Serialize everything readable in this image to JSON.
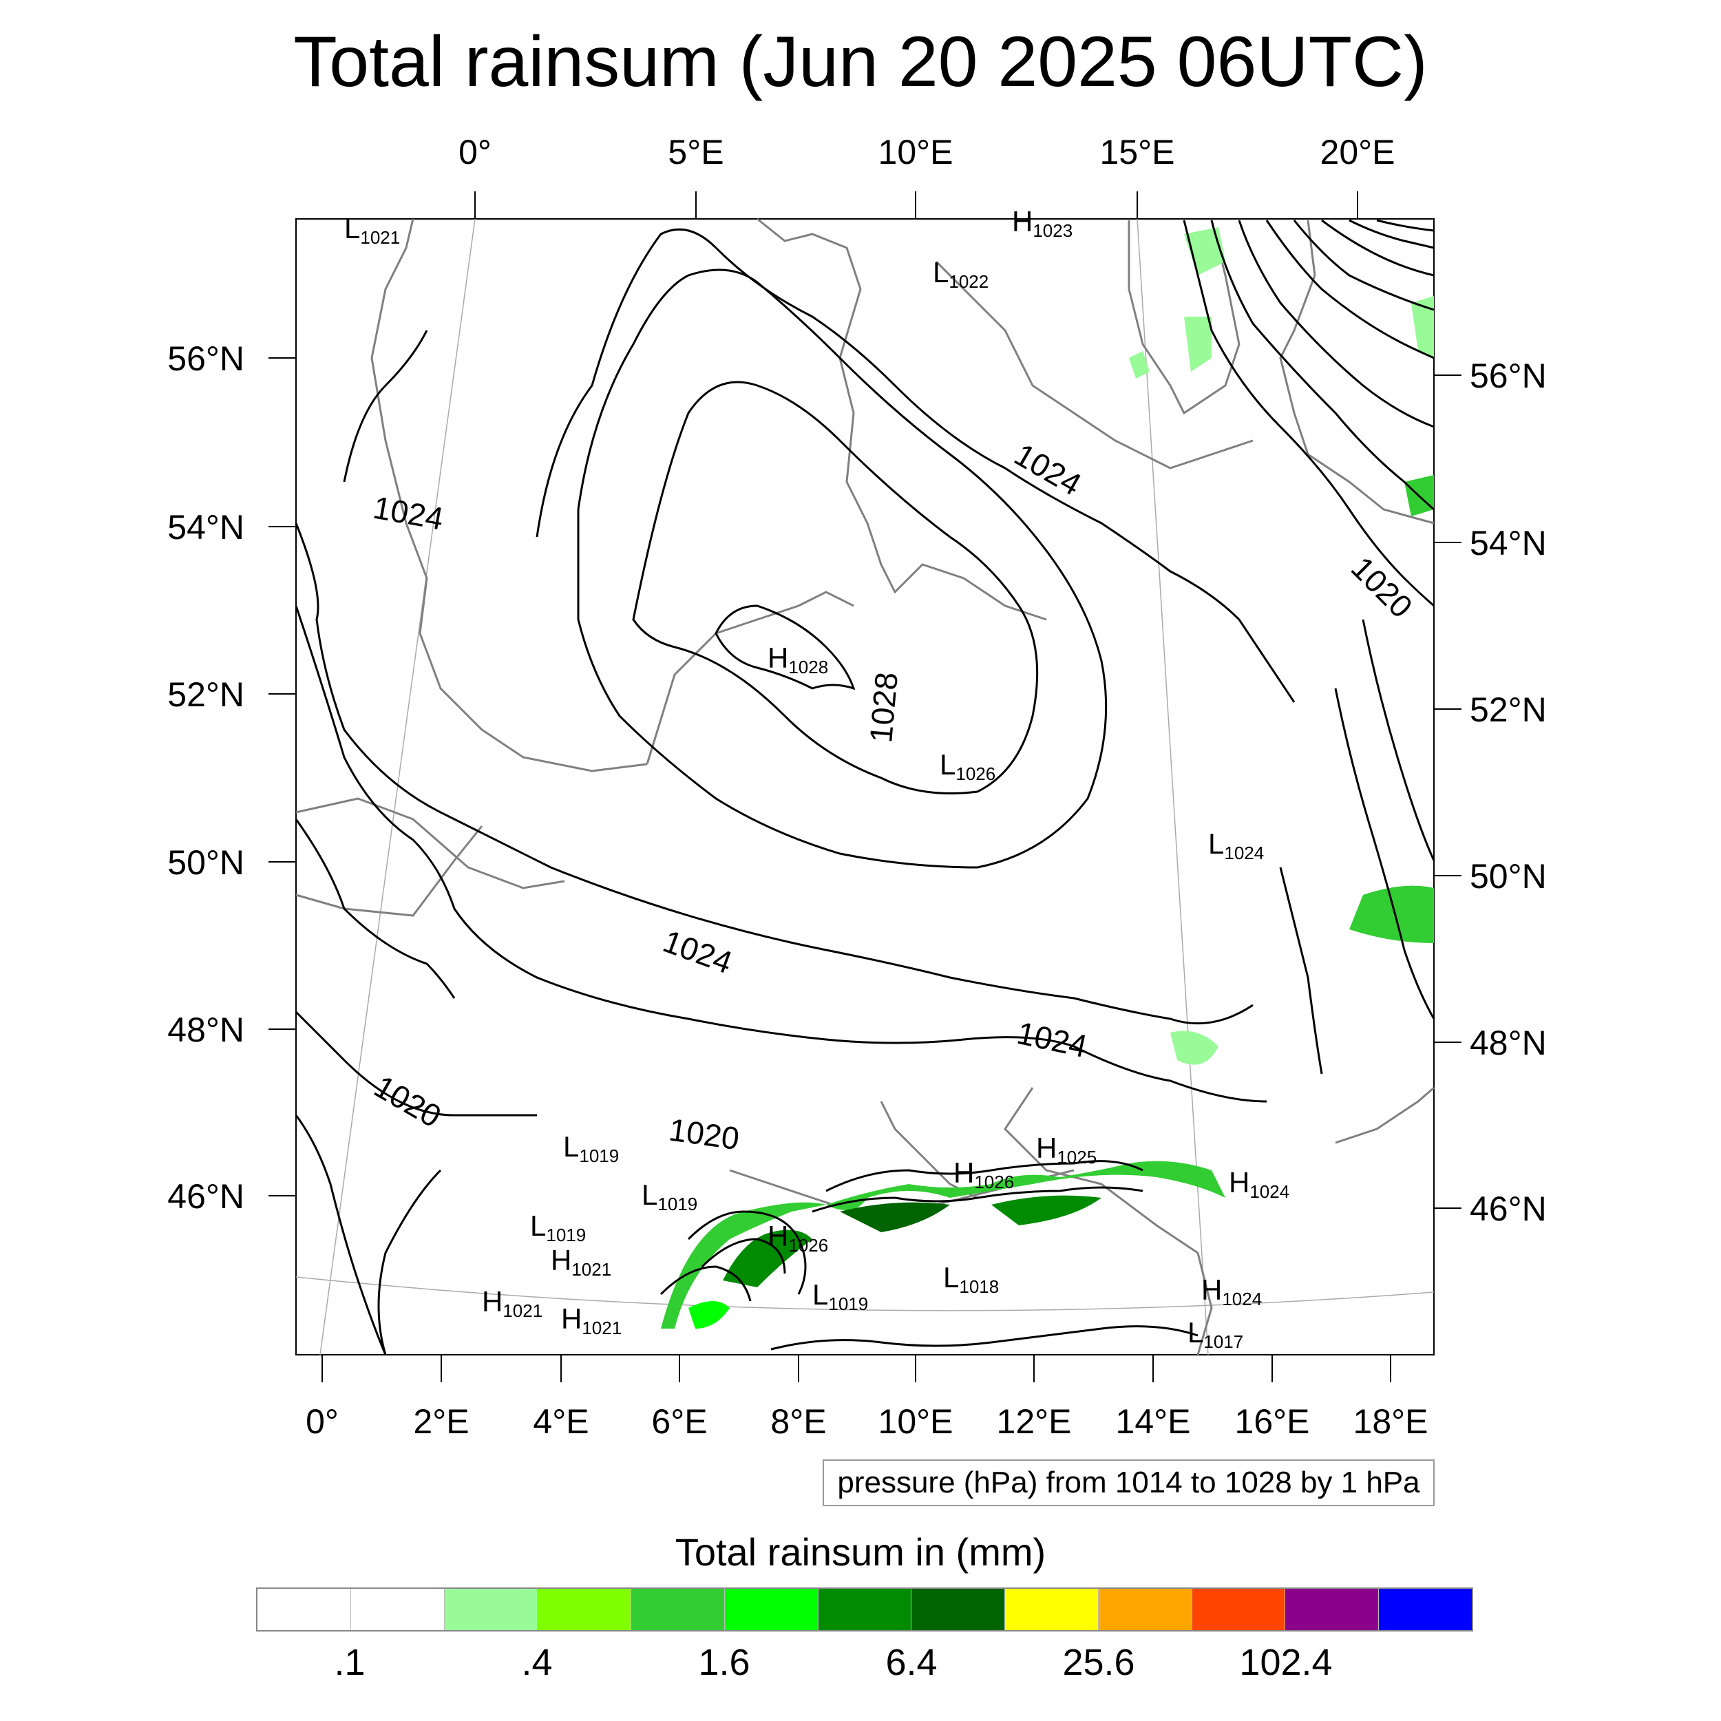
{
  "title": "Total rainsum (Jun 20 2025 06UTC)",
  "map": {
    "top_lon_labels": [
      "0°",
      "5°E",
      "10°E",
      "15°E",
      "20°E"
    ],
    "bottom_lon_labels": [
      "0°",
      "2°E",
      "4°E",
      "6°E",
      "8°E",
      "10°E",
      "12°E",
      "14°E",
      "16°E",
      "18°E"
    ],
    "left_lat_labels": [
      "56°N",
      "54°N",
      "52°N",
      "50°N",
      "48°N",
      "46°N"
    ],
    "right_lat_labels": [
      "56°N",
      "54°N",
      "52°N",
      "50°N",
      "48°N",
      "46°N"
    ],
    "contour_labels": [
      "1024",
      "1024",
      "1024",
      "1024",
      "1028",
      "1020",
      "1020",
      "1020"
    ],
    "pressure_centers": [
      {
        "type": "L",
        "value": "1021"
      },
      {
        "type": "H",
        "value": "1023"
      },
      {
        "type": "L",
        "value": "1022"
      },
      {
        "type": "H",
        "value": "1028"
      },
      {
        "type": "L",
        "value": "1026"
      },
      {
        "type": "L",
        "value": "1024"
      },
      {
        "type": "H",
        "value": "1025"
      },
      {
        "type": "H",
        "value": "1026"
      },
      {
        "type": "H",
        "value": "1024"
      },
      {
        "type": "L",
        "value": "1019"
      },
      {
        "type": "L",
        "value": "1019"
      },
      {
        "type": "L",
        "value": "1019"
      },
      {
        "type": "H",
        "value": "1021"
      },
      {
        "type": "H",
        "value": "1021"
      },
      {
        "type": "H",
        "value": "1021"
      },
      {
        "type": "H",
        "value": "1026"
      },
      {
        "type": "L",
        "value": "1019"
      },
      {
        "type": "L",
        "value": "1018"
      },
      {
        "type": "H",
        "value": "1024"
      },
      {
        "type": "L",
        "value": "1017"
      }
    ],
    "colors": {
      "contour": "#000000",
      "coast": "#808080",
      "grid": "#aaaaaa"
    }
  },
  "info_box": "pressure (hPa) from 1014 to 1028 by 1 hPa",
  "legend": {
    "title": "Total rainsum in (mm)",
    "colors": [
      "#ffffff",
      "#ffffff",
      "#98fb98",
      "#7fff00",
      "#32cd32",
      "#00ff00",
      "#008b00",
      "#006400",
      "#ffff00",
      "#ffa500",
      "#ff4500",
      "#8b008b",
      "#0000ff"
    ],
    "labels": [
      ".1",
      ".4",
      "1.6",
      "6.4",
      "25.6",
      "102.4"
    ]
  }
}
